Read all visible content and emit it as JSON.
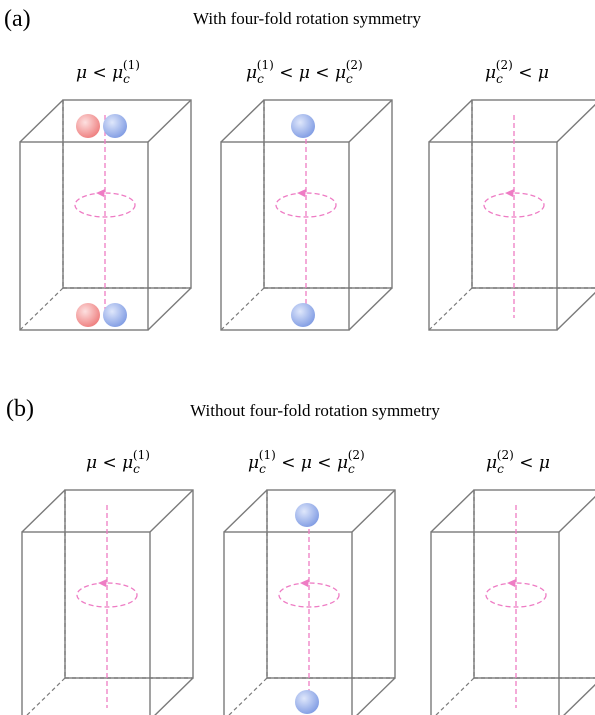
{
  "panels": [
    {
      "tag": "(a)",
      "title": "With four-fold rotation symmetry",
      "cases": [
        {
          "label": [
            "μ < μ",
            "c",
            "(1)"
          ]
        },
        {
          "label": [
            "μ",
            "c",
            "(1)",
            " < μ < μ",
            "c",
            "(2)"
          ]
        },
        {
          "label": [
            "μ",
            "c",
            "(2)",
            " < μ"
          ]
        }
      ]
    },
    {
      "tag": "(b)",
      "title": "Without four-fold rotation symmetry",
      "cases": [
        {
          "label": [
            "μ < μ",
            "c",
            "(1)"
          ]
        },
        {
          "label": [
            "μ",
            "c",
            "(1)",
            " < μ < μ",
            "c",
            "(2)"
          ]
        },
        {
          "label": [
            "μ",
            "c",
            "(2)",
            " < μ"
          ]
        }
      ]
    }
  ]
}
